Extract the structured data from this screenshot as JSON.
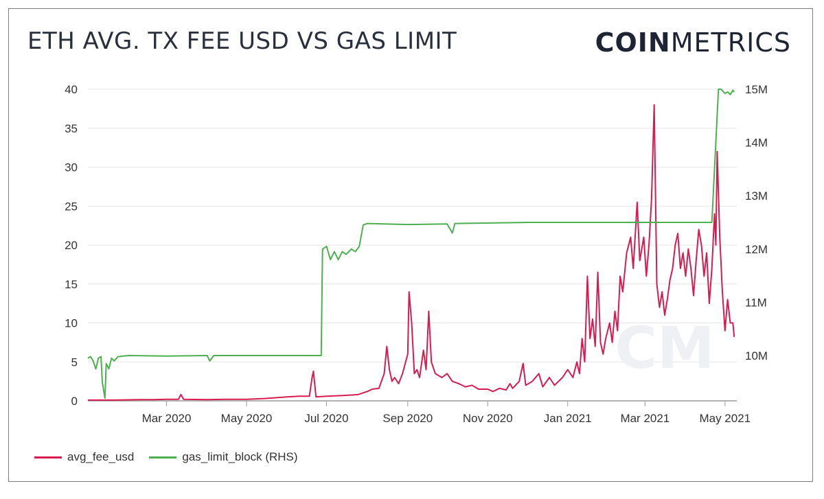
{
  "header": {
    "title": "ETH AVG. TX FEE USD VS GAS LIMIT",
    "logo_bold": "COIN",
    "logo_light": "METRICS",
    "watermark": "CM"
  },
  "colors": {
    "fee": "#d81b4f",
    "gas": "#4caf50",
    "grid": "#e6e6e6",
    "axis": "#999999",
    "tick": "#333333"
  },
  "chart_data": {
    "type": "line",
    "x_type": "date",
    "xlim": [
      "2020-01-01",
      "2021-05-10"
    ],
    "x_ticks": [
      {
        "date": "2020-03-01",
        "label": "Mar 2020"
      },
      {
        "date": "2020-05-01",
        "label": "May 2020"
      },
      {
        "date": "2020-07-01",
        "label": "Jul 2020"
      },
      {
        "date": "2020-09-01",
        "label": "Sep 2020"
      },
      {
        "date": "2020-11-01",
        "label": "Nov 2020"
      },
      {
        "date": "2021-01-01",
        "label": "Jan 2021"
      },
      {
        "date": "2021-03-01",
        "label": "Mar 2021"
      },
      {
        "date": "2021-05-01",
        "label": "May 2021"
      }
    ],
    "y_left": {
      "range": [
        0,
        40
      ],
      "ticks": [
        "0",
        "5",
        "10",
        "15",
        "20",
        "25",
        "30",
        "35",
        "40"
      ]
    },
    "y_right": {
      "range": [
        9150000,
        15000000
      ],
      "ticks": [
        {
          "value": 10000000,
          "label": "10M"
        },
        {
          "value": 11000000,
          "label": "11M"
        },
        {
          "value": 12000000,
          "label": "12M"
        },
        {
          "value": 13000000,
          "label": "13M"
        },
        {
          "value": 14000000,
          "label": "14M"
        },
        {
          "value": 15000000,
          "label": "15M"
        }
      ]
    },
    "grid": true,
    "legend_position": "bottom-left",
    "series": [
      {
        "name": "avg_fee_usd",
        "axis": "left",
        "points": [
          [
            "2020-01-01",
            0.1
          ],
          [
            "2020-01-20",
            0.1
          ],
          [
            "2020-02-10",
            0.15
          ],
          [
            "2020-02-20",
            0.15
          ],
          [
            "2020-03-01",
            0.2
          ],
          [
            "2020-03-10",
            0.2
          ],
          [
            "2020-03-12",
            0.8
          ],
          [
            "2020-03-14",
            0.2
          ],
          [
            "2020-04-01",
            0.15
          ],
          [
            "2020-04-15",
            0.2
          ],
          [
            "2020-05-01",
            0.2
          ],
          [
            "2020-05-15",
            0.3
          ],
          [
            "2020-06-01",
            0.5
          ],
          [
            "2020-06-10",
            0.6
          ],
          [
            "2020-06-18",
            0.6
          ],
          [
            "2020-06-20",
            3.0
          ],
          [
            "2020-06-21",
            3.8
          ],
          [
            "2020-06-23",
            0.5
          ],
          [
            "2020-07-01",
            0.6
          ],
          [
            "2020-07-15",
            0.7
          ],
          [
            "2020-07-25",
            0.8
          ],
          [
            "2020-08-01",
            1.2
          ],
          [
            "2020-08-05",
            1.5
          ],
          [
            "2020-08-10",
            1.6
          ],
          [
            "2020-08-14",
            3.5
          ],
          [
            "2020-08-16",
            7.0
          ],
          [
            "2020-08-18",
            4.0
          ],
          [
            "2020-08-20",
            2.5
          ],
          [
            "2020-08-22",
            3.0
          ],
          [
            "2020-08-25",
            2.2
          ],
          [
            "2020-08-28",
            3.5
          ],
          [
            "2020-09-01",
            6.0
          ],
          [
            "2020-09-02",
            14.0
          ],
          [
            "2020-09-04",
            10.0
          ],
          [
            "2020-09-06",
            3.5
          ],
          [
            "2020-09-08",
            4.0
          ],
          [
            "2020-09-10",
            3.0
          ],
          [
            "2020-09-13",
            6.5
          ],
          [
            "2020-09-15",
            4.0
          ],
          [
            "2020-09-17",
            11.5
          ],
          [
            "2020-09-19",
            5.0
          ],
          [
            "2020-09-22",
            3.5
          ],
          [
            "2020-09-27",
            3.0
          ],
          [
            "2020-10-01",
            3.5
          ],
          [
            "2020-10-05",
            2.5
          ],
          [
            "2020-10-10",
            2.2
          ],
          [
            "2020-10-15",
            1.8
          ],
          [
            "2020-10-20",
            2.0
          ],
          [
            "2020-10-25",
            1.5
          ],
          [
            "2020-11-01",
            1.5
          ],
          [
            "2020-11-05",
            1.2
          ],
          [
            "2020-11-10",
            1.6
          ],
          [
            "2020-11-15",
            1.4
          ],
          [
            "2020-11-18",
            2.2
          ],
          [
            "2020-11-20",
            1.6
          ],
          [
            "2020-11-25",
            2.5
          ],
          [
            "2020-11-28",
            4.8
          ],
          [
            "2020-11-30",
            2.0
          ],
          [
            "2020-12-05",
            2.5
          ],
          [
            "2020-12-10",
            3.5
          ],
          [
            "2020-12-13",
            1.8
          ],
          [
            "2020-12-18",
            3.0
          ],
          [
            "2020-12-22",
            2.0
          ],
          [
            "2020-12-28",
            3.0
          ],
          [
            "2021-01-01",
            4.0
          ],
          [
            "2021-01-05",
            3.0
          ],
          [
            "2021-01-08",
            5.0
          ],
          [
            "2021-01-10",
            3.5
          ],
          [
            "2021-01-12",
            8.0
          ],
          [
            "2021-01-14",
            5.0
          ],
          [
            "2021-01-16",
            16.0
          ],
          [
            "2021-01-18",
            8.0
          ],
          [
            "2021-01-20",
            10.5
          ],
          [
            "2021-01-22",
            7.0
          ],
          [
            "2021-01-24",
            16.5
          ],
          [
            "2021-01-26",
            7.5
          ],
          [
            "2021-01-28",
            6.0
          ],
          [
            "2021-01-30",
            8.0
          ],
          [
            "2021-02-02",
            10.0
          ],
          [
            "2021-02-04",
            7.5
          ],
          [
            "2021-02-06",
            11.5
          ],
          [
            "2021-02-08",
            9.0
          ],
          [
            "2021-02-10",
            16.0
          ],
          [
            "2021-02-12",
            14.0
          ],
          [
            "2021-02-15",
            19.0
          ],
          [
            "2021-02-18",
            21.0
          ],
          [
            "2021-02-20",
            17.0
          ],
          [
            "2021-02-23",
            25.5
          ],
          [
            "2021-02-25",
            18.0
          ],
          [
            "2021-02-28",
            21.0
          ],
          [
            "2021-03-02",
            16.0
          ],
          [
            "2021-03-04",
            20.0
          ],
          [
            "2021-03-06",
            26.0
          ],
          [
            "2021-03-08",
            38.0
          ],
          [
            "2021-03-10",
            15.0
          ],
          [
            "2021-03-12",
            12.0
          ],
          [
            "2021-03-14",
            14.0
          ],
          [
            "2021-03-16",
            11.0
          ],
          [
            "2021-03-18",
            13.0
          ],
          [
            "2021-03-20",
            15.5
          ],
          [
            "2021-03-22",
            17.0
          ],
          [
            "2021-03-24",
            20.0
          ],
          [
            "2021-03-26",
            21.5
          ],
          [
            "2021-03-28",
            17.0
          ],
          [
            "2021-03-30",
            19.0
          ],
          [
            "2021-04-01",
            16.0
          ],
          [
            "2021-04-03",
            19.5
          ],
          [
            "2021-04-05",
            17.0
          ],
          [
            "2021-04-07",
            13.5
          ],
          [
            "2021-04-09",
            18.0
          ],
          [
            "2021-04-11",
            22.0
          ],
          [
            "2021-04-13",
            20.0
          ],
          [
            "2021-04-15",
            16.0
          ],
          [
            "2021-04-17",
            19.0
          ],
          [
            "2021-04-19",
            12.5
          ],
          [
            "2021-04-21",
            17.0
          ],
          [
            "2021-04-23",
            24.0
          ],
          [
            "2021-04-24",
            20.0
          ],
          [
            "2021-04-25",
            32.0
          ],
          [
            "2021-04-27",
            21.0
          ],
          [
            "2021-04-29",
            14.0
          ],
          [
            "2021-05-01",
            9.0
          ],
          [
            "2021-05-03",
            13.0
          ],
          [
            "2021-05-05",
            10.0
          ],
          [
            "2021-05-07",
            10.0
          ],
          [
            "2021-05-08",
            8.2
          ]
        ]
      },
      {
        "name": "gas_limit_block (RHS)",
        "axis": "right",
        "points": [
          [
            "2020-01-01",
            9950000
          ],
          [
            "2020-01-03",
            9980000
          ],
          [
            "2020-01-05",
            9900000
          ],
          [
            "2020-01-07",
            9750000
          ],
          [
            "2020-01-09",
            9950000
          ],
          [
            "2020-01-11",
            9980000
          ],
          [
            "2020-01-12",
            9500000
          ],
          [
            "2020-01-14",
            9200000
          ],
          [
            "2020-01-15",
            9850000
          ],
          [
            "2020-01-17",
            9750000
          ],
          [
            "2020-01-19",
            9950000
          ],
          [
            "2020-01-21",
            9900000
          ],
          [
            "2020-01-24",
            9980000
          ],
          [
            "2020-02-01",
            10000000
          ],
          [
            "2020-03-01",
            9990000
          ],
          [
            "2020-04-01",
            10000000
          ],
          [
            "2020-04-03",
            9900000
          ],
          [
            "2020-04-06",
            10000000
          ],
          [
            "2020-06-27",
            10000000
          ],
          [
            "2020-06-28",
            12000000
          ],
          [
            "2020-07-01",
            12050000
          ],
          [
            "2020-07-04",
            11800000
          ],
          [
            "2020-07-07",
            11950000
          ],
          [
            "2020-07-10",
            11800000
          ],
          [
            "2020-07-13",
            11950000
          ],
          [
            "2020-07-16",
            11900000
          ],
          [
            "2020-07-20",
            12000000
          ],
          [
            "2020-07-23",
            11950000
          ],
          [
            "2020-07-26",
            12050000
          ],
          [
            "2020-07-29",
            12450000
          ],
          [
            "2020-08-01",
            12480000
          ],
          [
            "2020-09-01",
            12460000
          ],
          [
            "2020-10-01",
            12470000
          ],
          [
            "2020-10-05",
            12300000
          ],
          [
            "2020-10-07",
            12480000
          ],
          [
            "2020-12-01",
            12500000
          ],
          [
            "2021-04-21",
            12500000
          ],
          [
            "2021-04-26",
            15000000
          ],
          [
            "2021-04-28",
            15000000
          ],
          [
            "2021-05-01",
            14920000
          ],
          [
            "2021-05-03",
            14950000
          ],
          [
            "2021-05-05",
            14900000
          ],
          [
            "2021-05-07",
            14980000
          ],
          [
            "2021-05-08",
            14950000
          ]
        ]
      }
    ]
  }
}
